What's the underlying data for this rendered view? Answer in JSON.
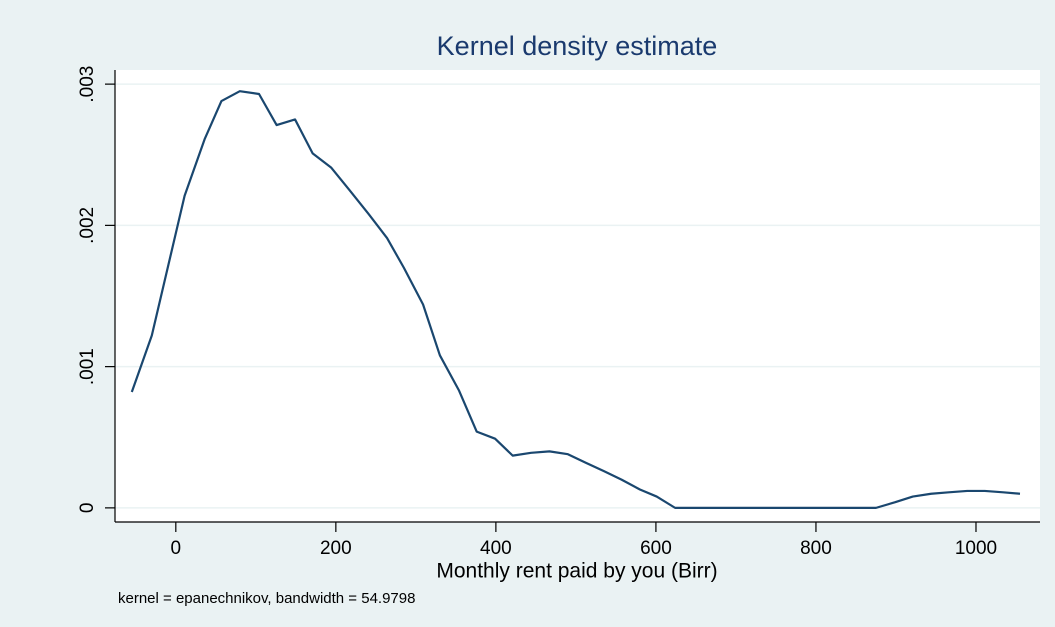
{
  "chart_data": {
    "type": "line",
    "title": "Kernel density estimate",
    "x_label": "Monthly rent paid by you (Birr)",
    "note": "kernel = epanechnikov, bandwidth = 54.9798",
    "x": [
      -55,
      -30,
      11,
      36,
      57,
      80,
      104,
      126,
      149,
      171,
      194,
      217,
      241,
      264,
      285,
      309,
      330,
      354,
      376,
      399,
      421,
      444,
      467,
      490,
      512,
      535,
      557,
      580,
      601,
      624,
      650,
      700,
      750,
      800,
      850,
      875,
      899,
      921,
      944,
      966,
      989,
      1011,
      1034,
      1055
    ],
    "series": [
      {
        "color": "#1a476f",
        "values": [
          0.00082,
          0.00122,
          0.00221,
          0.00261,
          0.00288,
          0.00295,
          0.00293,
          0.00271,
          0.00275,
          0.00251,
          0.00241,
          0.00225,
          0.00208,
          0.00191,
          0.0017,
          0.00144,
          0.00108,
          0.00083,
          0.00054,
          0.00049,
          0.00037,
          0.00039,
          0.0004,
          0.00038,
          0.00032,
          0.00026,
          0.0002,
          0.00013,
          8e-05,
          0,
          0,
          0,
          0,
          0,
          0,
          0,
          4e-05,
          8e-05,
          0.0001,
          0.00011,
          0.00012,
          0.00012,
          0.00011,
          0.0001
        ]
      }
    ],
    "xlim": [
      -76,
      1080
    ],
    "ylim": [
      -0.0001,
      0.0031
    ],
    "xticks": [
      0,
      200,
      400,
      600,
      800,
      1000
    ],
    "yticks": [
      0,
      {
        "value": 0.001,
        "label": ".001"
      },
      {
        "value": 0.002,
        "label": ".002"
      },
      {
        "value": 0.003,
        "label": ".003"
      }
    ],
    "grid": true
  }
}
